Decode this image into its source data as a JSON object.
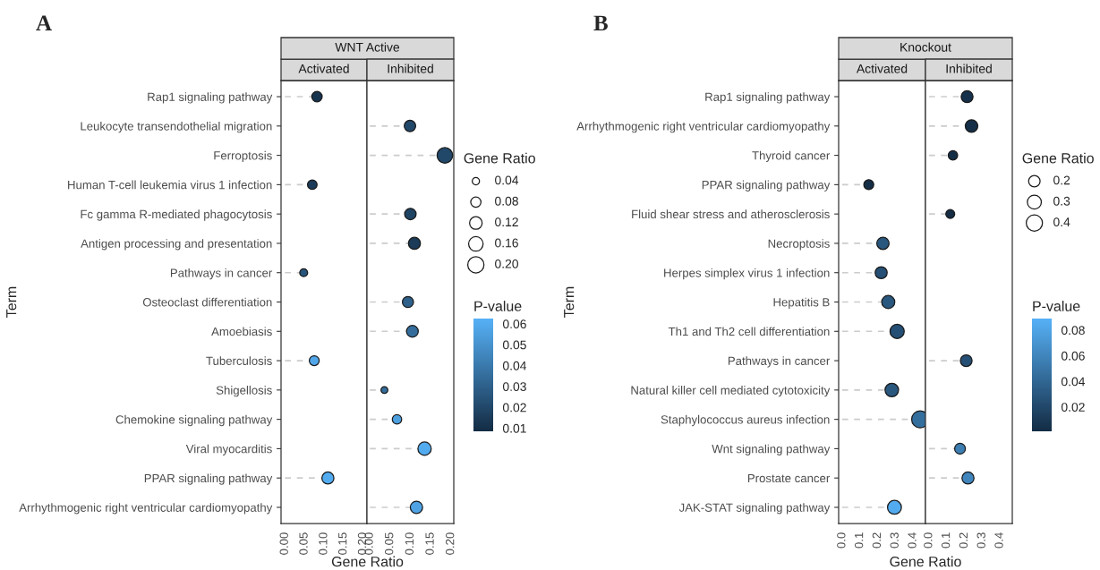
{
  "chart_data": [
    {
      "type": "lollipop",
      "orientation": "horizontal",
      "title": "Activated",
      "annotations": [
        "A",
        "WNT Active"
      ],
      "ylabel": "Term",
      "xlabel": "Gene Ratio",
      "marker": "circle",
      "line_style": "dashed",
      "categories": [
        "Rap1 signaling pathway",
        "Leukocyte transendothelial migration",
        "Ferroptosis",
        "Human T-cell leukemia virus 1 infection",
        "Fc gamma R-mediated phagocytosis",
        "Antigen processing and presentation",
        "Pathways in cancer",
        "Osteoclast differentiation",
        "Amoebiasis",
        "Tuberculosis",
        "Shigellosis",
        "Chemokine signaling pathway",
        "Viral myocarditis",
        "PPAR signaling pathway",
        "Arrhythmogenic right ventricular cardiomyopathy"
      ],
      "values": [
        0.082,
        null,
        null,
        0.07,
        null,
        null,
        0.048,
        null,
        null,
        0.075,
        null,
        null,
        null,
        0.11,
        null
      ],
      "sizes": [
        0.745,
        null,
        null,
        0.636,
        null,
        null,
        0.436,
        null,
        null,
        0.682,
        null,
        null,
        null,
        1,
        null
      ],
      "colors": [
        "#17344f",
        null,
        null,
        "#1b3b59",
        null,
        null,
        "#28557b",
        null,
        null,
        "#51a6e9",
        null,
        null,
        null,
        "#53acf0",
        null
      ],
      "xlim": [
        -0.01,
        0.21
      ],
      "xticks": [
        {
          "value": 0,
          "label": "0.00"
        },
        {
          "value": 0.05,
          "label": "0.05"
        },
        {
          "value": 0.1,
          "label": "0.10"
        },
        {
          "value": 0.15,
          "label": "0.15"
        },
        {
          "value": 0.2,
          "label": "0.20"
        }
      ]
    },
    {
      "type": "lollipop",
      "orientation": "horizontal",
      "title": "Inhibited",
      "tick_labels": "x",
      "marker": "circle",
      "line_style": "dashed",
      "values": [
        null,
        0.099,
        0.185,
        null,
        0.1,
        0.11,
        null,
        0.094,
        0.105,
        null,
        0.036,
        0.067,
        0.135,
        null,
        0.115
      ],
      "sizes": [
        null,
        0.099,
        0.185,
        null,
        0.1,
        0.11,
        null,
        0.094,
        0.105,
        null,
        0.036,
        0.067,
        0.135,
        null,
        0.115
      ],
      "cvalues": [
        null,
        0.02,
        0.02,
        null,
        0.018,
        0.015,
        null,
        0.03,
        0.035,
        null,
        0.035,
        0.055,
        0.06,
        null,
        0.057
      ],
      "xlim": [
        -0.007,
        0.207
      ],
      "xticks": [
        {
          "value": 0,
          "label": "0.00"
        },
        {
          "value": 0.05,
          "label": "0.05"
        },
        {
          "value": 0.1,
          "label": "0.10"
        },
        {
          "value": 0.15,
          "label": "0.15"
        },
        {
          "value": 0.2,
          "label": "0.20"
        }
      ],
      "legend_title": "Gene Ratio",
      "size_legend": [
        {
          "value": 0.04,
          "label": "0.04"
        },
        {
          "value": 0.08,
          "label": "0.08"
        },
        {
          "value": 0.12,
          "label": "0.12"
        },
        {
          "value": 0.16,
          "label": "0.16"
        },
        {
          "value": 0.2,
          "label": "0.20"
        }
      ],
      "clabel": "P-value",
      "clim": [
        0.0085,
        0.0625
      ],
      "cticks": [
        {
          "value": 0.01,
          "label": "0.01"
        },
        {
          "value": 0.02,
          "label": "0.02"
        },
        {
          "value": 0.03,
          "label": "0.03"
        },
        {
          "value": 0.04,
          "label": "0.04"
        },
        {
          "value": 0.05,
          "label": "0.05"
        },
        {
          "value": 0.06,
          "label": "0.06"
        }
      ]
    },
    {
      "type": "lollipop",
      "orientation": "horizontal",
      "title": "Activated",
      "annotations": [
        "B",
        "Knockout"
      ],
      "ylabel": "Term",
      "xlabel": "Gene Ratio",
      "marker": "circle",
      "line_style": "dashed",
      "categories": [
        "Rap1 signaling pathway",
        "Arrhythmogenic right ventricular cardiomyopathy",
        "Thyroid cancer",
        "PPAR signaling pathway",
        "Fluid shear stress and atherosclerosis",
        "Necroptosis",
        "Herpes simplex virus 1 infection",
        "Hepatitis B",
        "Th1 and Th2 cell differentiation",
        "Pathways in cancer",
        "Natural killer cell mediated cytotoxicity",
        "Staphylococcus aureus infection",
        "Wnt signaling pathway",
        "Prostate cancer",
        "JAK-STAT signaling pathway"
      ],
      "values": [
        null,
        null,
        null,
        0.15,
        null,
        0.23,
        0.22,
        0.26,
        0.31,
        null,
        0.28,
        0.44,
        null,
        null,
        0.295
      ],
      "sizes": [
        null,
        null,
        null,
        0.341,
        null,
        0.523,
        0.5,
        0.591,
        0.705,
        null,
        0.636,
        1,
        null,
        null,
        0.67
      ],
      "colors": [
        null,
        null,
        null,
        "#152e47",
        null,
        "#29577e",
        "#254f74",
        "#29577e",
        "#254f74",
        null,
        "#29577e",
        "#346e9d",
        null,
        null,
        "#53abef"
      ],
      "xlim": [
        -0.02,
        0.47
      ],
      "xticks": [
        {
          "value": 0,
          "label": "0.0"
        },
        {
          "value": 0.1,
          "label": "0.1"
        },
        {
          "value": 0.2,
          "label": "0.2"
        },
        {
          "value": 0.3,
          "label": "0.3"
        },
        {
          "value": 0.4,
          "label": "0.4"
        }
      ]
    },
    {
      "type": "lollipop",
      "orientation": "horizontal",
      "title": "Inhibited",
      "tick_labels": "x",
      "marker": "circle",
      "line_style": "dashed",
      "values": [
        0.215,
        0.24,
        0.135,
        null,
        0.12,
        null,
        null,
        null,
        null,
        0.21,
        null,
        null,
        0.175,
        0.22,
        null
      ],
      "sizes": [
        0.215,
        0.24,
        0.135,
        null,
        0.12,
        null,
        null,
        null,
        null,
        0.21,
        null,
        null,
        0.175,
        0.22,
        null
      ],
      "cvalues": [
        0.005,
        0.003,
        0.003,
        null,
        0.002,
        null,
        null,
        null,
        null,
        0.025,
        null,
        null,
        0.055,
        0.06,
        null
      ],
      "xlim": [
        -0.02,
        0.47
      ],
      "xticks": [
        {
          "value": 0,
          "label": "0.0"
        },
        {
          "value": 0.1,
          "label": "0.1"
        },
        {
          "value": 0.2,
          "label": "0.2"
        },
        {
          "value": 0.3,
          "label": "0.3"
        },
        {
          "value": 0.4,
          "label": "0.4"
        }
      ],
      "legend_title": "Gene Ratio",
      "size_legend": [
        {
          "value": 0.2,
          "label": "0.2"
        },
        {
          "value": 0.3,
          "label": "0.3"
        },
        {
          "value": 0.4,
          "label": "0.4"
        }
      ],
      "clabel": "P-value",
      "clim": [
        0.001,
        0.089
      ],
      "cticks": [
        {
          "value": 0.02,
          "label": "0.02"
        },
        {
          "value": 0.04,
          "label": "0.04"
        },
        {
          "value": 0.06,
          "label": "0.06"
        },
        {
          "value": 0.08,
          "label": "0.08"
        }
      ]
    }
  ]
}
